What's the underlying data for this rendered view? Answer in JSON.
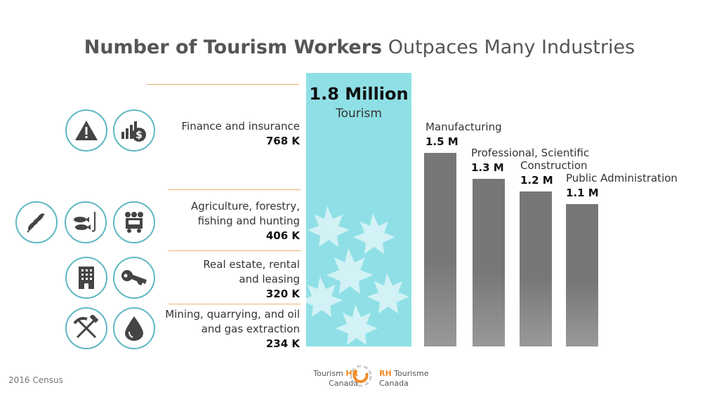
{
  "title": {
    "bold": "Number of Tourism Workers",
    "rest": " Outpaces Many Industries"
  },
  "footnote": "2016 Census",
  "logo": {
    "en_1": "Tourism",
    "en_hr": "HR",
    "en_2": "Canada",
    "fr_rh": "RH",
    "fr_1": "Tourisme",
    "fr_2": "Canada"
  },
  "chart_data": {
    "type": "bar",
    "unit": "workers",
    "highlight": {
      "name": "Tourism",
      "value": 1.8,
      "label": "1.8 Million"
    },
    "bars": [
      {
        "name": "Manufacturing",
        "value": 1.5,
        "label": "1.5 M"
      },
      {
        "name": "Professional, Scientific",
        "value": 1.3,
        "label": "1.3 M"
      },
      {
        "name": "Construction",
        "value": 1.2,
        "label": "1.2 M"
      },
      {
        "name": "Public Administration",
        "value": 1.1,
        "label": "1.1 M"
      }
    ],
    "smaller_industries": [
      {
        "name_line1": "Finance and insurance",
        "name_line2": "",
        "value": 768,
        "label": "768 K",
        "icons": [
          "warning-icon",
          "money-growth-icon"
        ]
      },
      {
        "name_line1": "Agriculture, forestry,",
        "name_line2": "fishing and hunting",
        "value": 406,
        "label": "406 K",
        "icons": [
          "wheat-icon",
          "fish-icon",
          "logging-truck-icon"
        ]
      },
      {
        "name_line1": "Real estate, rental",
        "name_line2": "and leasing",
        "value": 320,
        "label": "320 K",
        "icons": [
          "building-icon",
          "key-icon"
        ]
      },
      {
        "name_line1": "Mining, quarrying, and oil",
        "name_line2": "and gas extraction",
        "value": 234,
        "label": "234 K",
        "icons": [
          "pickaxe-hammer-icon",
          "oil-drop-icon"
        ]
      }
    ],
    "colors": {
      "tourism": "#8fe0e6",
      "others": "#777777",
      "accent_line": "#f0b070",
      "icon_border": "#5fb8c2"
    }
  }
}
